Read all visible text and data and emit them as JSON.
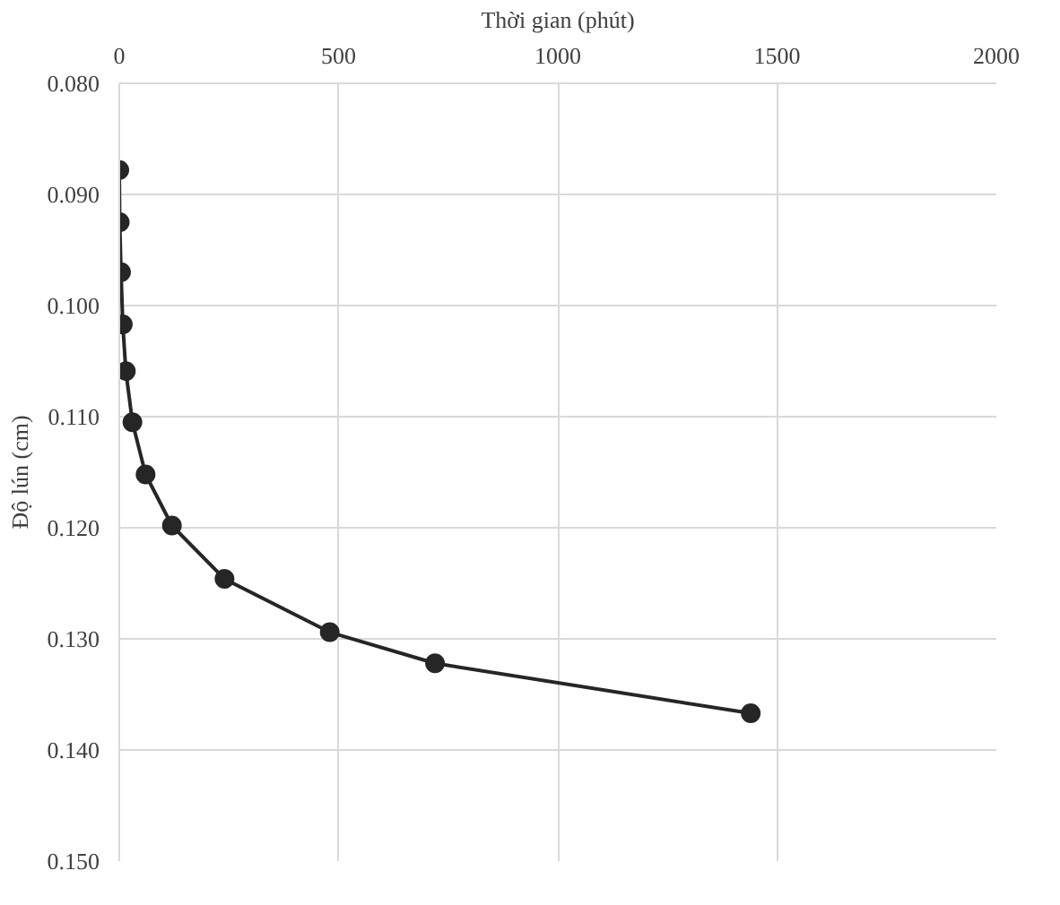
{
  "chart_data": {
    "type": "line",
    "xlabel": "Thời gian (phút)",
    "ylabel": "Độ lún (cm)",
    "x": [
      0,
      1,
      4,
      8,
      15,
      30,
      60,
      120,
      240,
      480,
      720,
      1440
    ],
    "series": [
      {
        "color": "#262626",
        "values": [
          0.0878,
          0.0925,
          0.097,
          0.1017,
          0.1059,
          0.1105,
          0.1152,
          0.1198,
          0.1246,
          0.1294,
          0.1322,
          0.1367
        ]
      }
    ],
    "xlim": [
      0,
      2000
    ],
    "xticks": [
      0,
      500,
      1000,
      1500,
      2000
    ],
    "ylim": [
      0.15,
      0.08
    ],
    "yticks": [
      {
        "value": 0.08,
        "label": "0.080"
      },
      {
        "value": 0.09,
        "label": "0.090"
      },
      {
        "value": 0.1,
        "label": "0.100"
      },
      {
        "value": 0.11,
        "label": "0.110"
      },
      {
        "value": 0.12,
        "label": "0.120"
      },
      {
        "value": 0.13,
        "label": "0.130"
      },
      {
        "value": 0.14,
        "label": "0.140"
      },
      {
        "value": 0.15,
        "label": "0.150"
      }
    ],
    "grid": true,
    "marker": "circle",
    "line_style": "solid"
  }
}
